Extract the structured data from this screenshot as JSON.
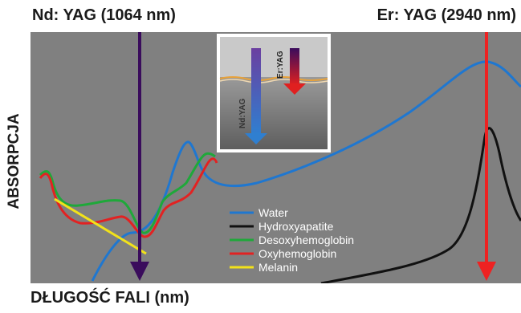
{
  "labels": {
    "nd_title": "Nd: YAG (1064 nm)",
    "er_title": "Er: YAG (2940 nm)",
    "y_axis": "ABSORPCJA",
    "x_axis": "DŁUGOŚĆ FALI (nm)"
  },
  "inset": {
    "nd_beam": "Nd:YAG",
    "er_beam": "Er:YAG"
  },
  "legend": [
    {
      "name": "Water",
      "color": "#1f77d0"
    },
    {
      "name": "Hydroxyapatite",
      "color": "#111111"
    },
    {
      "name": "Desoxyhemoglobin",
      "color": "#1fa83a"
    },
    {
      "name": "Oxyhemoglobin",
      "color": "#e22222"
    },
    {
      "name": "Melanin",
      "color": "#f2e21a"
    }
  ],
  "colors": {
    "background": "#808080",
    "nd_arrow": "#3a0c5c",
    "er_arrow": "#ee2222"
  }
}
